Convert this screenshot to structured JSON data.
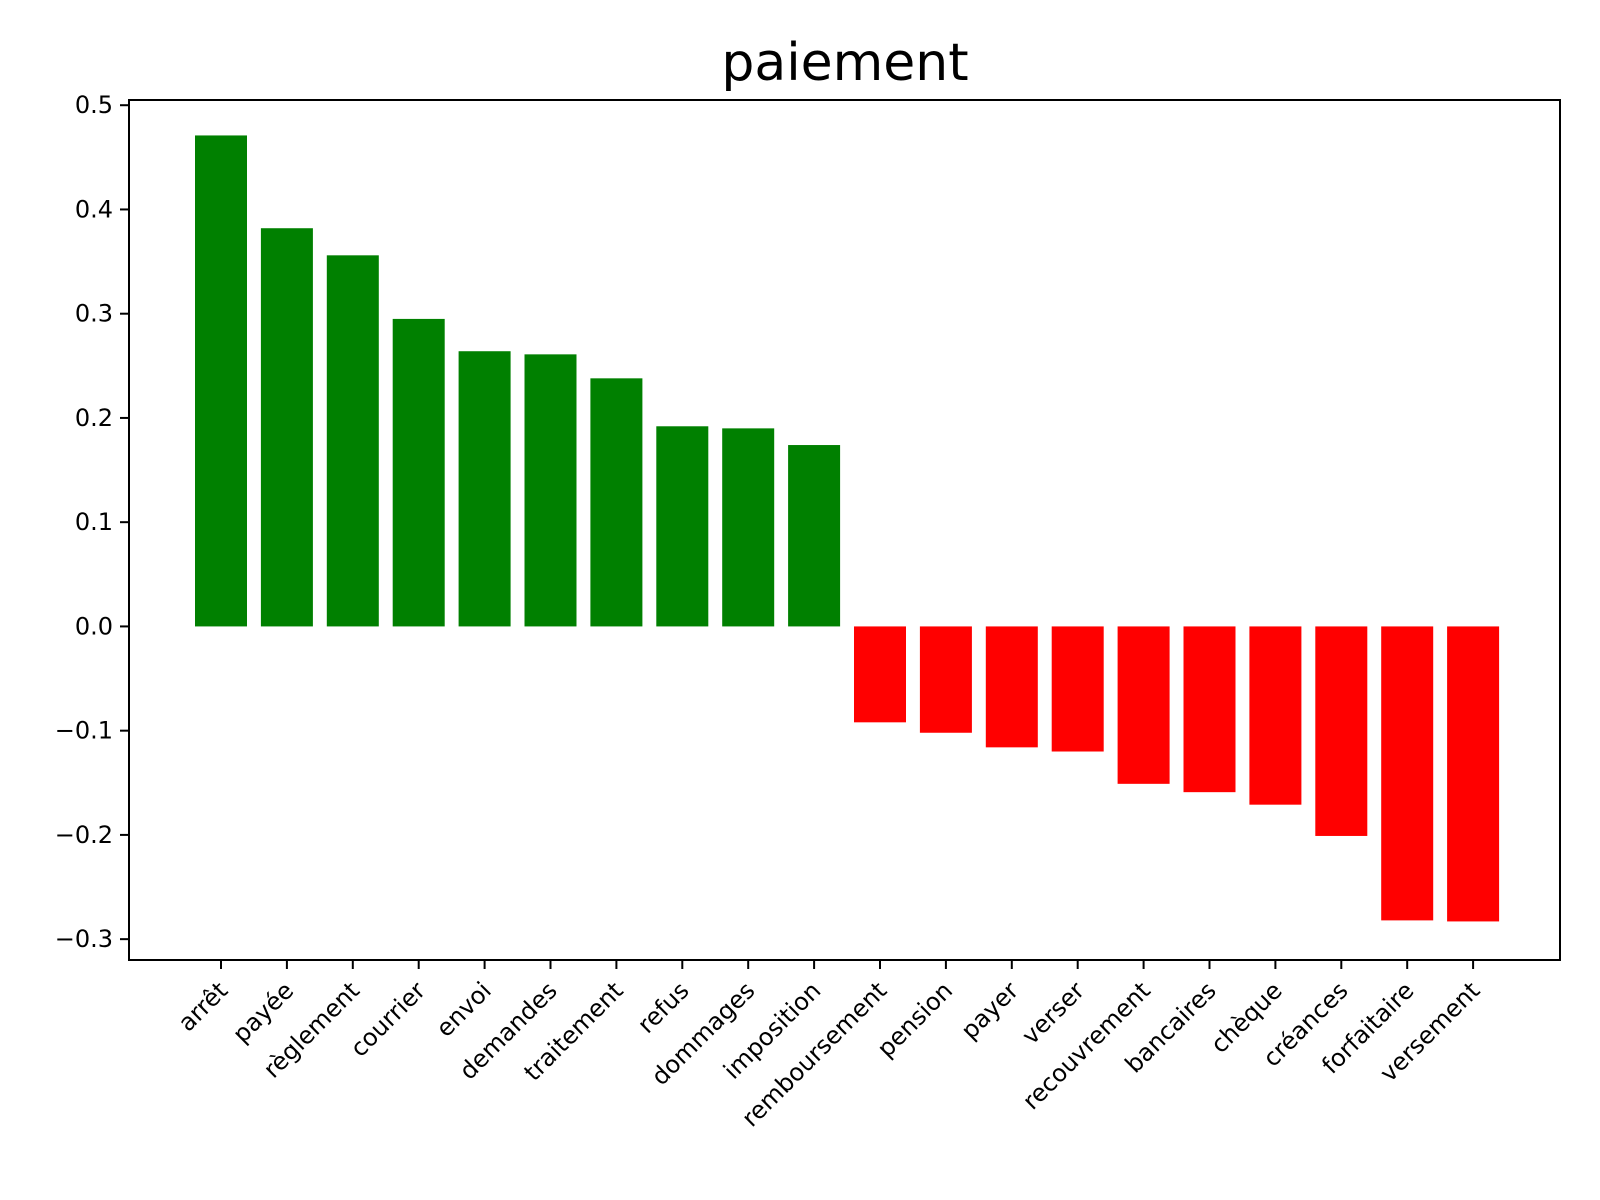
{
  "chart_data": {
    "type": "bar",
    "title": "paiement",
    "xlabel": "",
    "ylabel": "",
    "categories": [
      "arrêt",
      "payée",
      "règlement",
      "courrier",
      "envoi",
      "demandes",
      "traitement",
      "refus",
      "dommages",
      "imposition",
      "remboursement",
      "pension",
      "payer",
      "verser",
      "recouvrement",
      "bancaires",
      "chèque",
      "créances",
      "forfaitaire",
      "versement"
    ],
    "values": [
      0.471,
      0.382,
      0.356,
      0.295,
      0.264,
      0.261,
      0.238,
      0.192,
      0.19,
      0.174,
      -0.092,
      -0.102,
      -0.116,
      -0.12,
      -0.151,
      -0.159,
      -0.171,
      -0.201,
      -0.282,
      -0.283
    ],
    "ylim": [
      -0.32,
      0.505
    ],
    "yticks": [
      0.5,
      0.4,
      0.3,
      0.2,
      0.1,
      0.0,
      -0.1,
      -0.2,
      -0.3
    ],
    "ytick_labels": [
      "0.5",
      "0.4",
      "0.3",
      "0.2",
      "0.1",
      "0.0",
      "−0.1",
      "−0.2",
      "−0.3"
    ],
    "positive_color": "#008000",
    "negative_color": "#ff0000",
    "grid": false,
    "legend": "none"
  }
}
